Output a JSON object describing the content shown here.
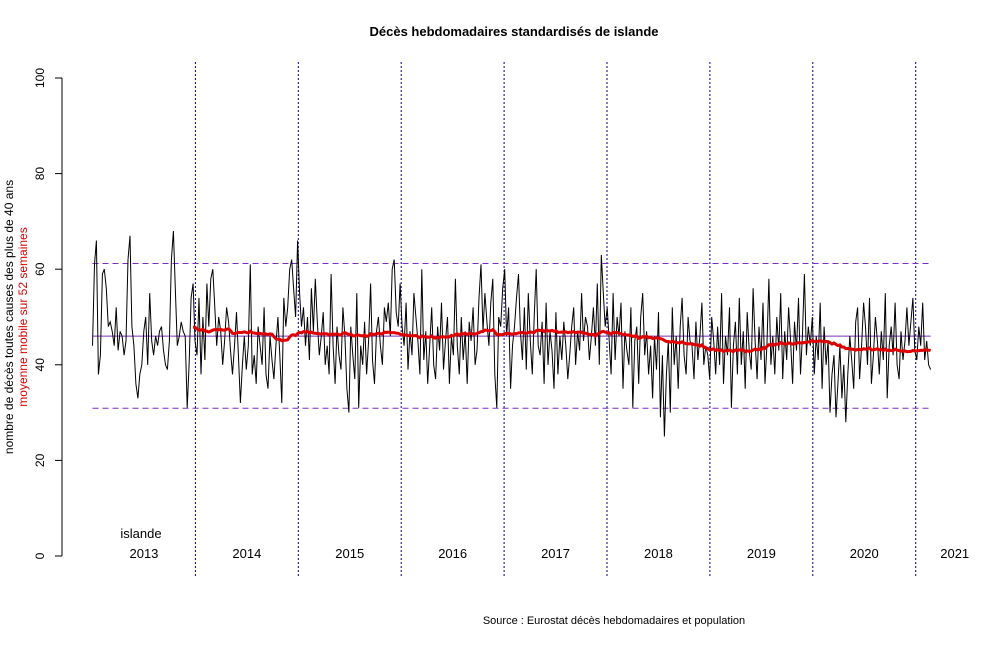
{
  "chart_data": {
    "type": "line",
    "title": "Décès hebdomadaires standardisés de islande",
    "ylabel": "nombre de décès toutes causes des plus de 40 ans",
    "ylabel2": "moyenne mobile sur 52 semaines",
    "source": "Source : Eurostat décès hebdomadaires et population",
    "country_label": "islande",
    "ylim": [
      0,
      100
    ],
    "yticks": [
      "0",
      "20",
      "40",
      "60",
      "80",
      "100"
    ],
    "year_labels": [
      "2013",
      "2014",
      "2015",
      "2016",
      "2017",
      "2018",
      "2019",
      "2020",
      "2021"
    ],
    "year_separators": [
      2014,
      2015,
      2016,
      2017,
      2018,
      2019,
      2020,
      2021
    ],
    "x_start": 2013,
    "grid": false,
    "reference_lines": {
      "mean": 46,
      "upper": 61.2,
      "lower": 30.9
    },
    "moving_average_window": 52,
    "colors": {
      "weekly": "#000000",
      "moving_average": "#e00000",
      "reference": "#7b2fbf",
      "separators": "#00008b"
    },
    "series": [
      {
        "name": "weekly",
        "values": [
          44,
          61,
          66,
          38,
          42,
          59,
          60,
          56,
          48,
          49,
          47,
          44,
          52,
          43,
          47,
          46,
          42,
          45,
          62,
          67,
          48,
          44,
          36,
          33,
          38,
          40,
          47,
          50,
          40,
          55,
          45,
          42,
          46,
          44,
          47,
          48,
          43,
          40,
          39,
          45,
          62,
          68,
          56,
          44,
          46,
          49,
          47,
          46,
          31,
          40,
          54,
          57,
          45,
          42,
          54,
          38,
          50,
          41,
          57,
          48,
          58,
          60,
          52,
          44,
          50,
          47,
          40,
          45,
          52,
          49,
          43,
          38,
          44,
          51,
          42,
          32,
          40,
          46,
          39,
          44,
          61,
          38,
          42,
          36,
          48,
          44,
          40,
          52,
          38,
          35,
          46,
          41,
          37,
          44,
          50,
          42,
          32,
          54,
          48,
          52,
          60,
          62,
          56,
          50,
          66,
          55,
          48,
          52,
          44,
          50,
          41,
          56,
          47,
          58,
          49,
          42,
          46,
          51,
          40,
          44,
          38,
          59,
          44,
          36,
          48,
          42,
          39,
          52,
          46,
          35,
          30,
          48,
          42,
          37,
          55,
          31,
          44,
          40,
          49,
          38,
          45,
          57,
          41,
          36,
          47,
          50,
          44,
          40,
          52,
          49,
          53,
          46,
          60,
          62,
          51,
          48,
          57,
          48,
          44,
          53,
          39,
          47,
          42,
          55,
          50,
          45,
          38,
          60,
          41,
          47,
          36,
          44,
          52,
          40,
          37,
          48,
          43,
          53,
          39,
          45,
          50,
          36,
          46,
          42,
          58,
          44,
          38,
          50,
          41,
          47,
          36,
          49,
          45,
          52,
          40,
          43,
          54,
          61,
          47,
          55,
          49,
          44,
          53,
          58,
          38,
          31,
          50,
          48,
          56,
          60,
          46,
          52,
          35,
          44,
          48,
          54,
          59,
          47,
          41,
          52,
          39,
          55,
          45,
          38,
          50,
          60,
          44,
          42,
          49,
          36,
          53,
          40,
          47,
          43,
          35,
          51,
          38,
          46,
          41,
          49,
          44,
          37,
          42,
          48,
          52,
          40,
          47,
          43,
          55,
          45,
          50,
          48,
          41,
          46,
          52,
          44,
          57,
          40,
          63,
          55,
          48,
          52,
          45,
          38,
          55,
          41,
          50,
          46,
          53,
          35,
          47,
          43,
          40,
          52,
          31,
          45,
          48,
          36,
          50,
          55,
          42,
          47,
          38,
          44,
          33,
          46,
          39,
          51,
          29,
          42,
          25,
          38,
          45,
          30,
          52,
          40,
          46,
          35,
          48,
          54,
          42,
          38,
          50,
          45,
          44,
          37,
          49,
          41,
          46,
          53,
          40,
          44,
          42,
          37,
          50,
          45,
          38,
          48,
          40,
          55,
          36,
          46,
          42,
          52,
          31,
          44,
          49,
          38,
          54,
          40,
          47,
          35,
          51,
          43,
          39,
          56,
          45,
          37,
          48,
          41,
          53,
          36,
          44,
          58,
          40,
          46,
          38,
          50,
          43,
          55,
          37,
          47,
          41,
          52,
          45,
          36,
          49,
          43,
          54,
          38,
          46,
          59,
          42,
          48,
          44,
          50,
          38,
          46,
          41,
          53,
          35,
          48,
          40,
          45,
          30,
          38,
          42,
          29,
          36,
          44,
          33,
          40,
          28,
          38,
          46,
          41,
          35,
          49,
          52,
          37,
          44,
          53,
          48,
          40,
          54,
          36,
          42,
          50,
          45,
          38,
          47,
          41,
          55,
          33,
          44,
          48,
          42,
          53,
          40,
          37,
          47,
          41,
          45,
          52,
          44,
          49,
          54,
          43,
          41,
          48,
          44,
          53,
          41,
          45,
          40,
          39
        ]
      }
    ]
  }
}
